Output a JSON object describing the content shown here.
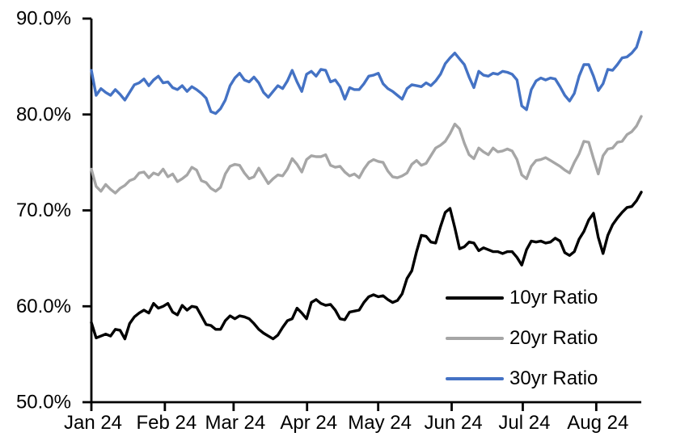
{
  "chart_data": {
    "type": "line",
    "title": "",
    "grid": false,
    "legend_position": "inside-lower-right",
    "background_color": "#ffffff",
    "axis_color": "#000000",
    "x_axis": {
      "tick_labels": [
        "Jan 24",
        "Feb 24",
        "Mar 24",
        "Apr 24",
        "May 24",
        "Jun 24",
        "Jul 24",
        "Aug 24"
      ],
      "tick_day_offsets": [
        0,
        31,
        60,
        91,
        121,
        152,
        182,
        213
      ],
      "total_days": 232
    },
    "y_axis": {
      "min": 50,
      "max": 90,
      "tick_values": [
        50,
        60,
        70,
        80,
        90
      ],
      "tick_labels": [
        "50.0%",
        "60.0%",
        "70.0%",
        "80.0%",
        "90.0%"
      ],
      "format": "percent"
    },
    "series": [
      {
        "name": "10yr Ratio",
        "color": "#000000",
        "values": [
          58.3,
          56.7,
          56.9,
          57.1,
          56.9,
          57.6,
          57.5,
          56.6,
          58.2,
          58.9,
          59.3,
          59.6,
          59.3,
          60.3,
          59.8,
          60.0,
          60.3,
          59.4,
          59.1,
          60.1,
          59.6,
          60.0,
          59.9,
          59.0,
          58.1,
          58.0,
          57.6,
          57.6,
          58.5,
          59.0,
          58.7,
          59.0,
          58.9,
          58.7,
          58.2,
          57.6,
          57.2,
          56.9,
          56.6,
          57.0,
          57.8,
          58.5,
          58.7,
          59.8,
          59.3,
          58.7,
          60.4,
          60.7,
          60.3,
          60.1,
          60.2,
          59.6,
          58.7,
          58.6,
          59.4,
          59.5,
          59.6,
          60.4,
          61.0,
          61.2,
          61.0,
          61.1,
          60.7,
          60.4,
          60.6,
          61.3,
          62.9,
          63.7,
          65.7,
          67.4,
          67.3,
          66.7,
          66.6,
          68.3,
          69.8,
          70.2,
          68.2,
          66.0,
          66.2,
          66.7,
          66.6,
          65.8,
          66.1,
          65.9,
          65.7,
          65.7,
          65.5,
          65.7,
          65.7,
          65.1,
          64.3,
          65.9,
          66.8,
          66.7,
          66.8,
          66.6,
          66.7,
          67.1,
          66.8,
          65.6,
          65.3,
          65.7,
          67.0,
          67.8,
          69.0,
          69.7,
          67.2,
          65.5,
          67.4,
          68.5,
          69.2,
          69.8,
          70.3,
          70.4,
          71.0,
          71.9
        ]
      },
      {
        "name": "20yr Ratio",
        "color": "#A6A6A6",
        "values": [
          74.3,
          72.5,
          72.0,
          72.7,
          72.2,
          71.8,
          72.3,
          72.6,
          73.1,
          73.3,
          73.9,
          74.0,
          73.4,
          73.9,
          73.7,
          74.3,
          73.5,
          73.8,
          73.0,
          73.3,
          73.7,
          74.5,
          74.2,
          73.1,
          72.9,
          72.3,
          72.0,
          72.4,
          73.8,
          74.6,
          74.8,
          74.7,
          73.9,
          73.3,
          73.5,
          74.4,
          73.6,
          72.8,
          73.3,
          73.7,
          73.6,
          74.3,
          75.4,
          74.8,
          74.0,
          75.3,
          75.7,
          75.6,
          75.6,
          75.8,
          74.7,
          74.5,
          74.6,
          74.0,
          73.6,
          73.8,
          73.4,
          74.3,
          75.0,
          75.3,
          75.1,
          75.0,
          74.1,
          73.5,
          73.4,
          73.6,
          73.9,
          74.8,
          75.2,
          74.7,
          74.9,
          75.7,
          76.5,
          76.8,
          77.2,
          78.0,
          79.0,
          78.5,
          77.0,
          75.8,
          75.4,
          76.5,
          76.1,
          75.8,
          76.5,
          76.1,
          76.2,
          76.4,
          76.2,
          75.3,
          73.7,
          73.3,
          74.6,
          75.2,
          75.3,
          75.5,
          75.2,
          74.9,
          74.6,
          74.2,
          73.9,
          75.0,
          75.9,
          77.2,
          77.1,
          75.4,
          73.8,
          75.7,
          76.4,
          76.5,
          77.1,
          77.2,
          77.9,
          78.2,
          78.8,
          79.8
        ]
      },
      {
        "name": "30yr Ratio",
        "color": "#4472C4",
        "values": [
          84.6,
          82.0,
          82.7,
          82.3,
          82.0,
          82.6,
          82.1,
          81.5,
          82.3,
          83.1,
          83.3,
          83.7,
          83.0,
          83.6,
          84.0,
          83.3,
          83.4,
          82.8,
          82.6,
          83.0,
          82.4,
          82.9,
          82.6,
          82.2,
          81.7,
          80.3,
          80.1,
          80.6,
          81.5,
          83.0,
          83.8,
          84.3,
          83.6,
          83.4,
          83.9,
          83.3,
          82.3,
          81.8,
          82.4,
          83.0,
          82.7,
          83.5,
          84.6,
          83.4,
          82.4,
          84.2,
          84.5,
          84.0,
          84.7,
          84.6,
          83.4,
          83.6,
          82.9,
          81.6,
          82.8,
          82.6,
          82.6,
          83.2,
          84.0,
          84.1,
          84.3,
          83.2,
          82.7,
          82.4,
          82.0,
          81.6,
          82.7,
          83.1,
          83.0,
          82.9,
          83.3,
          83.0,
          83.5,
          84.2,
          85.3,
          85.9,
          86.4,
          85.8,
          85.2,
          83.9,
          82.8,
          84.5,
          84.1,
          84.0,
          84.3,
          84.2,
          84.5,
          84.4,
          84.2,
          83.6,
          80.9,
          80.5,
          82.6,
          83.5,
          83.8,
          83.6,
          83.8,
          83.7,
          82.9,
          82.0,
          81.4,
          82.2,
          84.0,
          85.2,
          85.2,
          84.0,
          82.5,
          83.2,
          84.7,
          84.6,
          85.2,
          85.9,
          86.0,
          86.4,
          87.0,
          88.6
        ]
      }
    ]
  }
}
